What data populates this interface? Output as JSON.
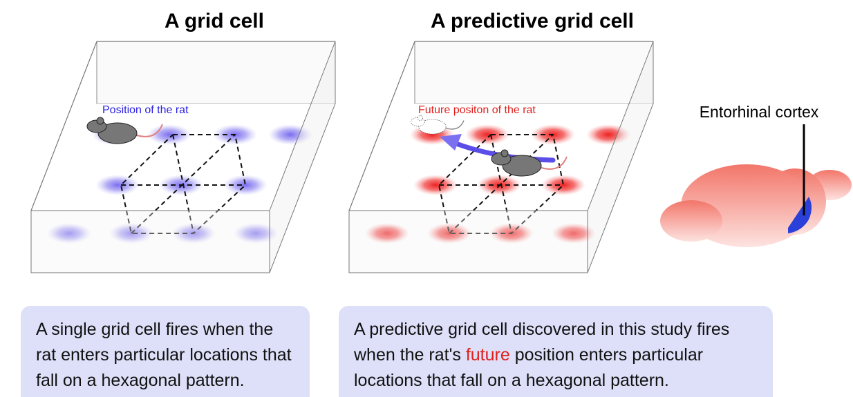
{
  "panels": [
    {
      "title": "A grid cell",
      "label": "Position of the rat",
      "caption": "A single grid cell fires when the rat enters particular locations that fall on a hexagonal pattern."
    },
    {
      "title": "A predictive grid cell",
      "label": "Future positon of the rat",
      "caption": {
        "before": "A predictive grid cell discovered in this study fires when the rat's ",
        "highlight": "future",
        "after": " position enters particular locations that fall on a hexagonal pattern."
      }
    }
  ],
  "brain": {
    "label": "Entorhinal cortex"
  }
}
